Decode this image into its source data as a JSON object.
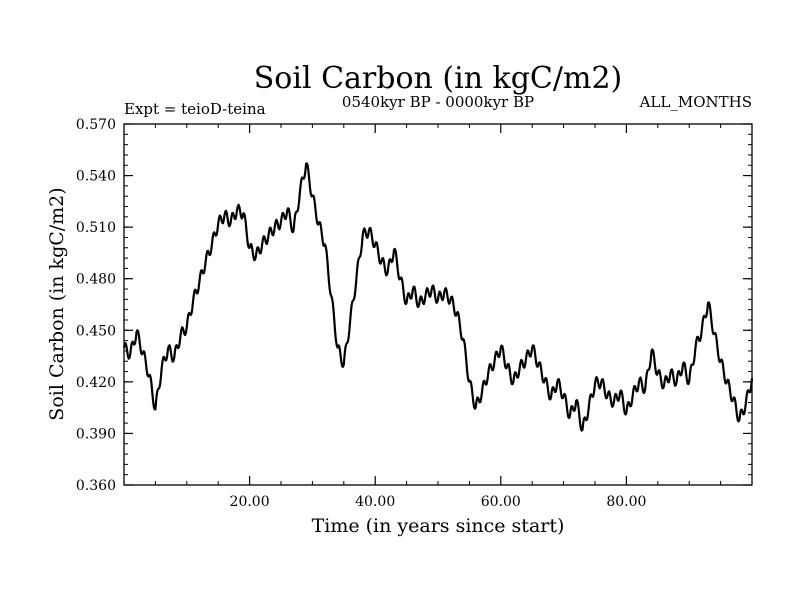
{
  "chart_data": {
    "type": "line",
    "title": "Soil Carbon (in kgC/m2)",
    "subtitle_left": "Expt = teioD-teina",
    "subtitle_center": "0540kyr BP - 0000kyr BP",
    "subtitle_right": "ALL_MONTHS",
    "xlabel": "Time (in years since start)",
    "ylabel": "Soil Carbon (in kgC/m2)",
    "xlim": [
      0,
      100
    ],
    "ylim": [
      0.36,
      0.57
    ],
    "x_ticks": [
      20,
      40,
      60,
      80
    ],
    "x_tick_labels": [
      "20.00",
      "40.00",
      "60.00",
      "80.00"
    ],
    "y_ticks": [
      0.36,
      0.39,
      0.42,
      0.45,
      0.48,
      0.51,
      0.54,
      0.57
    ],
    "y_tick_labels": [
      "0.360",
      "0.390",
      "0.420",
      "0.450",
      "0.480",
      "0.510",
      "0.540",
      "0.570"
    ],
    "series": [
      {
        "name": "Soil Carbon",
        "color": "#000000",
        "x": [
          0,
          1,
          2,
          3,
          4,
          5,
          6,
          7,
          8,
          9,
          10,
          11,
          12,
          13,
          14,
          15,
          16,
          17,
          18,
          19,
          20,
          21,
          22,
          23,
          24,
          25,
          26,
          27,
          28,
          29,
          30,
          31,
          32,
          33,
          34,
          35,
          36,
          37,
          38,
          39,
          40,
          41,
          42,
          43,
          44,
          45,
          46,
          47,
          48,
          49,
          50,
          51,
          52,
          53,
          54,
          55,
          56,
          57,
          58,
          59,
          60,
          61,
          62,
          63,
          64,
          65,
          66,
          67,
          68,
          69,
          70,
          71,
          72,
          73,
          74,
          75,
          76,
          77,
          78,
          79,
          80,
          81,
          82,
          83,
          84,
          85,
          86,
          87,
          88,
          89,
          90,
          91,
          92,
          93,
          94,
          95,
          96,
          97,
          98,
          99,
          100
        ],
        "values": [
          0.44,
          0.436,
          0.449,
          0.437,
          0.424,
          0.404,
          0.428,
          0.439,
          0.434,
          0.447,
          0.452,
          0.467,
          0.478,
          0.49,
          0.5,
          0.512,
          0.517,
          0.513,
          0.52,
          0.518,
          0.498,
          0.493,
          0.5,
          0.505,
          0.51,
          0.513,
          0.52,
          0.508,
          0.53,
          0.547,
          0.528,
          0.512,
          0.5,
          0.47,
          0.44,
          0.43,
          0.455,
          0.48,
          0.505,
          0.508,
          0.5,
          0.49,
          0.484,
          0.497,
          0.48,
          0.466,
          0.474,
          0.465,
          0.47,
          0.474,
          0.468,
          0.472,
          0.468,
          0.46,
          0.445,
          0.42,
          0.405,
          0.414,
          0.425,
          0.432,
          0.44,
          0.429,
          0.42,
          0.428,
          0.433,
          0.44,
          0.43,
          0.421,
          0.411,
          0.42,
          0.412,
          0.4,
          0.409,
          0.392,
          0.405,
          0.419,
          0.42,
          0.412,
          0.408,
          0.414,
          0.402,
          0.412,
          0.42,
          0.416,
          0.438,
          0.425,
          0.418,
          0.425,
          0.42,
          0.43,
          0.42,
          0.44,
          0.45,
          0.466,
          0.448,
          0.432,
          0.42,
          0.41,
          0.398,
          0.407,
          0.422
        ]
      }
    ]
  }
}
